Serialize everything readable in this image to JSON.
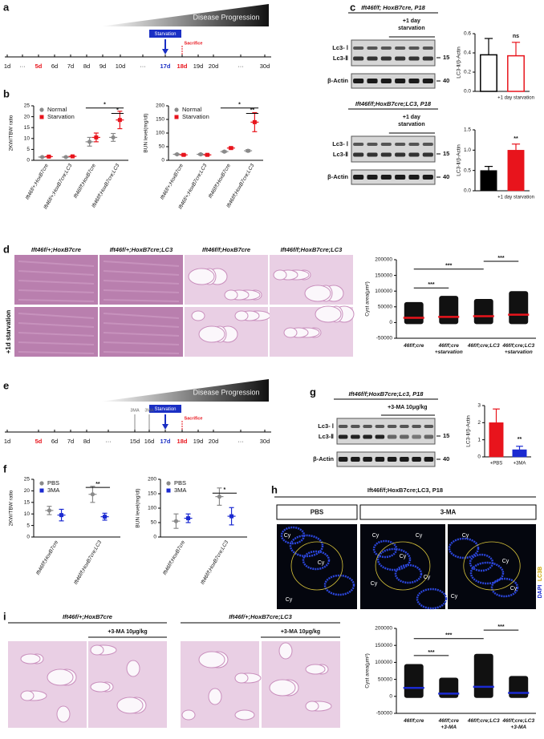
{
  "panel_labels": [
    "a",
    "b",
    "c",
    "d",
    "e",
    "f",
    "g",
    "h",
    "i"
  ],
  "timeline_a": {
    "banner": "Disease Progression",
    "event": "Starvation",
    "sacrifice": "Sacrifice",
    "days": [
      "1d",
      "···",
      "5d",
      "6d",
      "7d",
      "8d",
      "9d",
      "10d",
      "···",
      "17d",
      "18d",
      "19d",
      "20d",
      "···",
      "30d"
    ]
  },
  "timeline_e": {
    "banner": "Disease Progression",
    "event": "Starvation",
    "sacrifice": "Sacrifice",
    "treatment": [
      "3MA",
      "3MA"
    ],
    "days": [
      "1d",
      "5d",
      "6d",
      "7d",
      "8d",
      "···",
      "15d",
      "16d",
      "17d",
      "18d",
      "19d",
      "20d",
      "···",
      "30d"
    ]
  },
  "blots": [
    {
      "title": "Ift46f/f; HoxB7cre, P18",
      "treatment": [
        "+1 day",
        "starvation"
      ],
      "rows": [
        "Lc3- Ⅰ",
        "Lc3-Ⅱ",
        "β-Actin"
      ],
      "markers": [
        "15",
        "40"
      ]
    },
    {
      "title": "Ift46f/f;HoxB7cre;LC3, P18",
      "treatment": [
        "+1 day",
        "starvation"
      ],
      "rows": [
        "Lc3- Ⅰ",
        "Lc3-Ⅱ",
        "β-Actin"
      ],
      "markers": [
        "15",
        "40"
      ]
    },
    {
      "title": "Ift46f/f;HoxB7cre;Lc3, P18",
      "treatment": [
        "+3-MA 10μg/kg"
      ],
      "rows": [
        "Lc3- Ⅰ",
        "Lc3-Ⅱ",
        "β-Actin"
      ],
      "markers": [
        "15",
        "40"
      ]
    }
  ],
  "histology_d": {
    "columns": [
      "Ift46f/+;HoxB7cre",
      "Ift46f/+;HoxB7cre;LC3",
      "Ift46f/f;HoxB7cre",
      "Ift46f/f;HoxB7cre;LC3"
    ],
    "row_label": "+1d starvation"
  },
  "immunofluorescence_h": {
    "title": "Ift46f/f;HoxB7cre;LC3, P18",
    "groups": [
      "PBS",
      "3-MA"
    ],
    "stains": [
      "DAPI",
      "LC3B"
    ],
    "cyst_labels": [
      "Cy",
      "Cy",
      "Cy",
      "Cy",
      "Cy",
      "Cy",
      "Cy",
      "Cy",
      "Cy",
      "Cy",
      "Cy",
      "Cy"
    ]
  },
  "histology_i": {
    "columns": [
      "Ift46f/+;HoxB7cre",
      "Ift46f/+;HoxB7cre;LC3"
    ],
    "treatment": [
      "+3-MA 10μg/kg",
      "+3-MA 10μg/kg"
    ]
  },
  "chart_data": [
    {
      "type": "dot",
      "ylabel": "2KW/TBW ratio",
      "categories": [
        "Ift46f/+;HoxB7cre",
        "Ift46f/+;HoxB7cre;LC3",
        "Ift46f/f;HoxB7cre",
        "Ift46f/f;HoxB7cre;LC3"
      ],
      "series": [
        {
          "name": "Normal",
          "color": "#8a8a8a",
          "marker": "circle",
          "values": [
            1.5,
            1.5,
            8.5,
            10.5
          ],
          "errors": [
            0.2,
            0.2,
            2,
            1.8
          ]
        },
        {
          "name": "Starvation",
          "color": "#e8141c",
          "marker": "square",
          "values": [
            1.7,
            1.8,
            10.5,
            18.5
          ],
          "errors": [
            0.2,
            0.2,
            2,
            4
          ]
        }
      ],
      "ylim": [
        0,
        25
      ],
      "yticks": [
        0,
        5,
        10,
        15,
        20,
        25
      ],
      "annotations": [
        "*",
        "*"
      ],
      "legend": "top-left"
    },
    {
      "type": "dot",
      "ylabel": "BUN level(mg/dl)",
      "categories": [
        "Ift46f/+;HoxB7cre",
        "Ift46f/+;HoxB7cre;LC3",
        "Ift46f/f;HoxB7cre",
        "Ift46f/f;HoxB7cre;LC3"
      ],
      "series": [
        {
          "name": "Normal",
          "color": "#8a8a8a",
          "marker": "circle",
          "values": [
            22,
            22,
            32,
            35
          ],
          "errors": [
            2,
            3,
            3,
            4
          ]
        },
        {
          "name": "Starvation",
          "color": "#e8141c",
          "marker": "square",
          "values": [
            20,
            20,
            45,
            140
          ],
          "errors": [
            3,
            3,
            4,
            35
          ]
        }
      ],
      "ylim": [
        0,
        200
      ],
      "yticks": [
        0,
        50,
        100,
        150,
        200
      ],
      "annotations": [
        "*",
        "**"
      ],
      "legend": "top-left"
    },
    {
      "type": "bar",
      "ylabel": "LC3-Ⅱ/β-Actin",
      "categories": [
        null,
        "+1 day starvation"
      ],
      "values": [
        0.38,
        0.37
      ],
      "errors": [
        0.17,
        0.14
      ],
      "colors": [
        "#000000",
        "#e8141c"
      ],
      "filled": false,
      "ylim": [
        0,
        0.6
      ],
      "yticks": [
        {
          "value": 0,
          "label": "0.0"
        },
        0.2,
        0.4,
        0.6
      ],
      "annotations": [
        "ns"
      ]
    },
    {
      "type": "bar",
      "ylabel": "LC3-Ⅱ/β-Actin",
      "categories": [
        null,
        "+1 day starvation"
      ],
      "values": [
        0.5,
        1.0
      ],
      "errors": [
        0.1,
        0.15
      ],
      "colors": [
        "#000000",
        "#e8141c"
      ],
      "filled": true,
      "ylim": [
        0,
        1.5
      ],
      "yticks": [
        {
          "value": 0,
          "label": "0.0"
        },
        0.5,
        {
          "value": 1,
          "label": "1.0"
        },
        1.5
      ],
      "annotations": [
        "**"
      ]
    },
    {
      "type": "dot",
      "ylabel": "Cyst area(μm²)",
      "categories": [
        [
          "46f/f;cre"
        ],
        [
          "46f/f;cre",
          "+starvation"
        ],
        [
          "46f/f;cre;LC3"
        ],
        [
          "46f/f;cre;LC3",
          "+starvation"
        ]
      ],
      "series": [
        {
          "color": "#e8141c",
          "marker": "line",
          "values": [
            15000,
            18000,
            20000,
            25000
          ],
          "maxima": [
            65000,
            85000,
            75000,
            100000
          ]
        }
      ],
      "ylim": [
        -50000,
        200000
      ],
      "yticks": [
        -50000,
        0,
        50000,
        100000,
        150000,
        200000
      ],
      "annotations": [
        "***",
        "***",
        "***"
      ]
    },
    {
      "type": "dot",
      "ylabel": "2KW/TBW ratio",
      "categories": [
        "Ift46f/f;HoxB7cre",
        "Ift46f/f;HoxB7cre;LC3"
      ],
      "series": [
        {
          "name": "PBS",
          "color": "#8a8a8a",
          "marker": "circle",
          "values": [
            11.5,
            18.5
          ],
          "errors": [
            1.8,
            3.5
          ]
        },
        {
          "name": "3MA",
          "color": "#1b2ad1",
          "marker": "square",
          "values": [
            9.5,
            8.8
          ],
          "errors": [
            2.5,
            1.5
          ]
        }
      ],
      "ylim": [
        0,
        25
      ],
      "yticks": [
        0,
        5,
        10,
        15,
        20,
        25
      ],
      "annotations": [
        "**"
      ],
      "legend": "top-left"
    },
    {
      "type": "dot",
      "ylabel": "BUN level(mg/dl)",
      "categories": [
        "Ift46f/f;HoxB7cre",
        "Ift46f/f;HoxB7cre;LC3"
      ],
      "series": [
        {
          "name": "PBS",
          "color": "#8a8a8a",
          "marker": "circle",
          "values": [
            55,
            140
          ],
          "errors": [
            25,
            30
          ]
        },
        {
          "name": "3MA",
          "color": "#1b2ad1",
          "marker": "square",
          "values": [
            65,
            72
          ],
          "errors": [
            15,
            30
          ]
        }
      ],
      "ylim": [
        0,
        200
      ],
      "yticks": [
        0,
        50,
        100,
        150,
        200
      ],
      "annotations": [
        "*"
      ],
      "legend": "top-left"
    },
    {
      "type": "bar",
      "ylabel": "LC3-Ⅱ/β-Actin",
      "categories": [
        "+PBS",
        "+3MA"
      ],
      "values": [
        2.0,
        0.42
      ],
      "errors": [
        0.8,
        0.2
      ],
      "colors": [
        "#e8141c",
        "#1b2ad1"
      ],
      "filled": true,
      "ylim": [
        0,
        3
      ],
      "yticks": [
        0,
        1,
        2,
        3
      ],
      "annotations": [
        "**"
      ]
    },
    {
      "type": "dot",
      "ylabel": "Cyst area(μm²)",
      "categories": [
        [
          "46f/f;cre"
        ],
        [
          "46f/f;cre",
          "+3-MA"
        ],
        [
          "46f/f;cre;LC3"
        ],
        [
          "46f/f;cre;LC3",
          "+3-MA"
        ]
      ],
      "series": [
        {
          "color": "#1b2ad1",
          "marker": "line",
          "values": [
            25000,
            8000,
            28000,
            10000
          ],
          "maxima": [
            95000,
            55000,
            125000,
            60000
          ]
        }
      ],
      "ylim": [
        -50000,
        200000
      ],
      "yticks": [
        -50000,
        0,
        50000,
        100000,
        150000,
        200000
      ],
      "annotations": [
        "***",
        "***",
        "***"
      ]
    }
  ]
}
